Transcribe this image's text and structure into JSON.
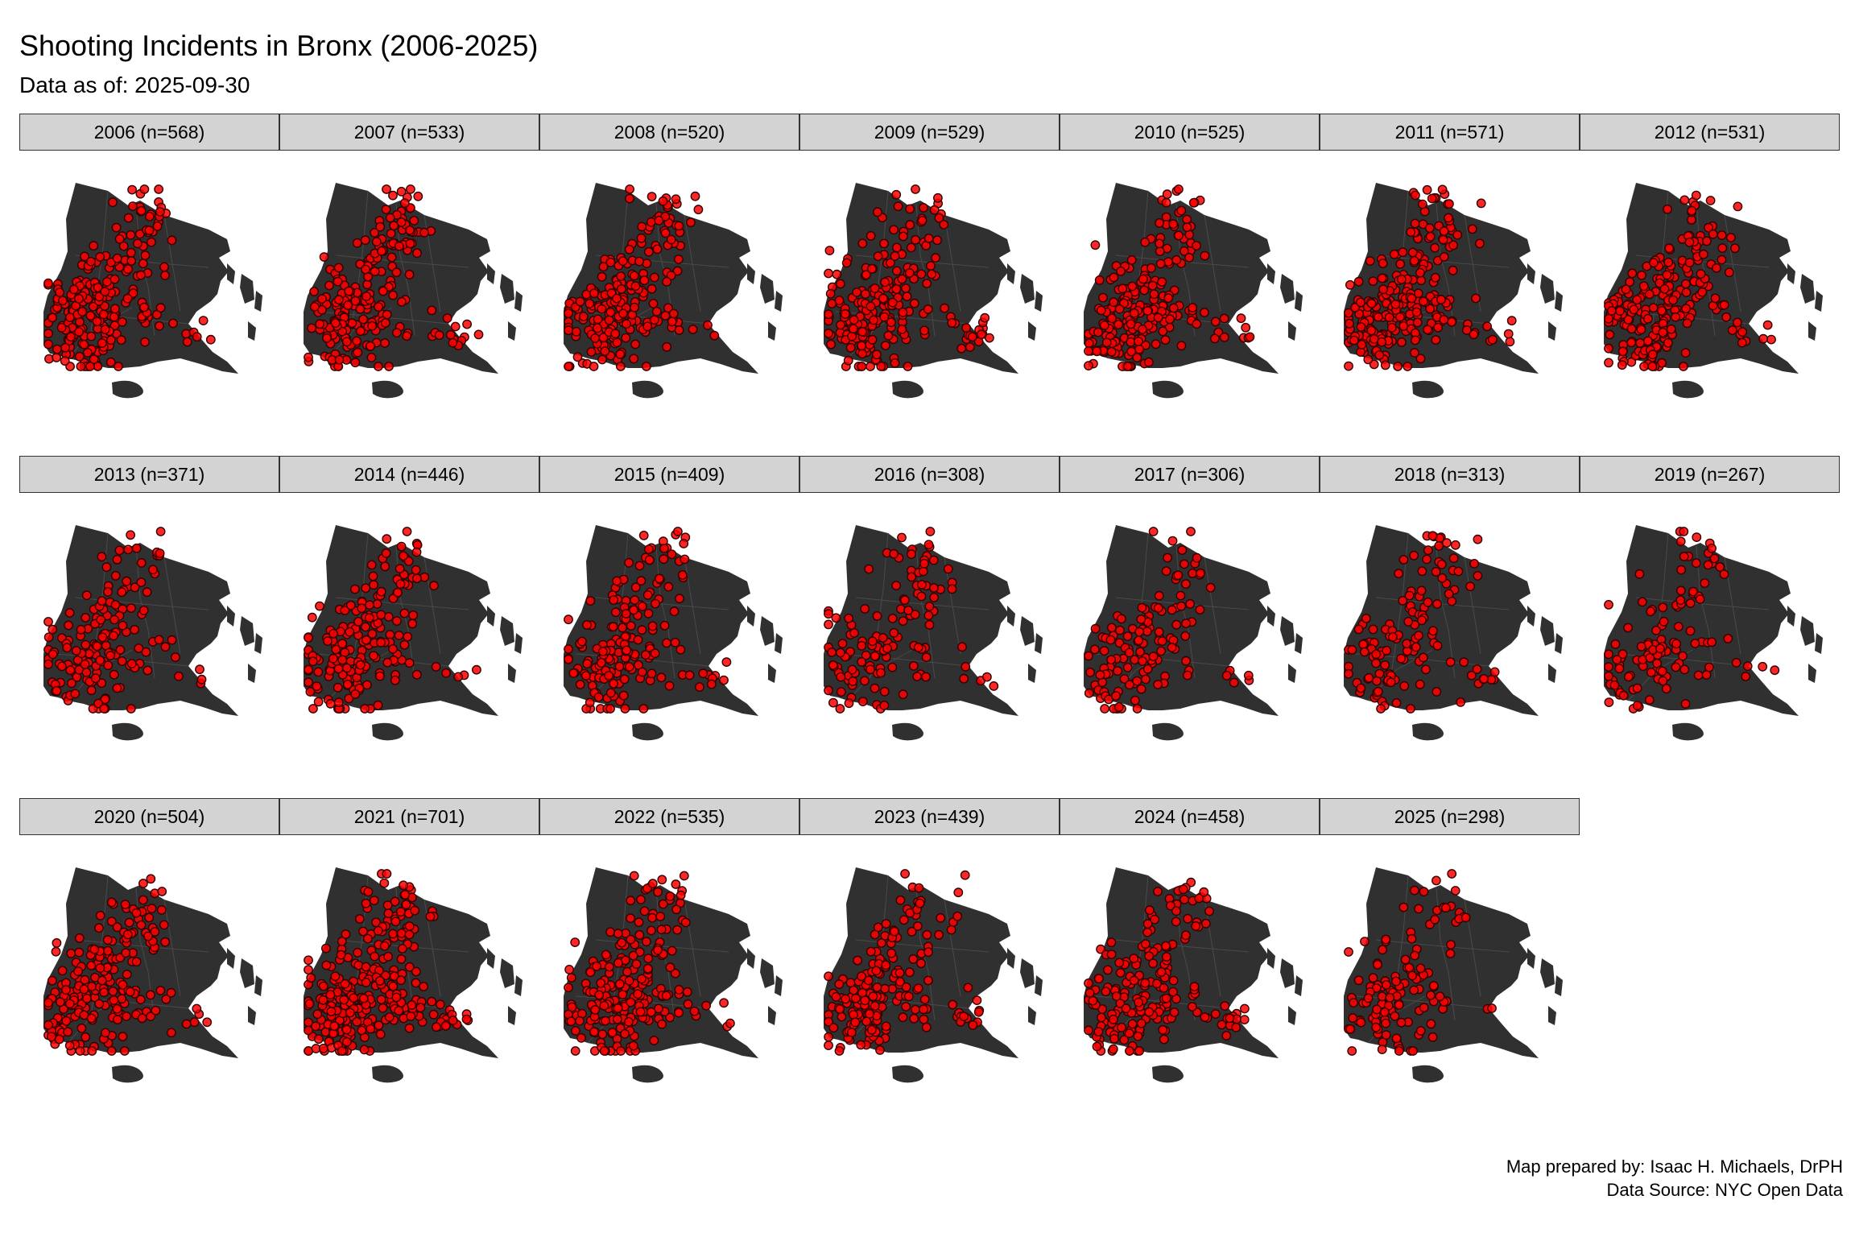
{
  "title": "Shooting Incidents in Bronx (2006-2025)",
  "subtitle": "Data as of: 2025-09-30",
  "caption": {
    "line1": "Map prepared by: Isaac H. Michaels, DrPH",
    "line2": "Data Source: NYC Open Data"
  },
  "colors": {
    "borough_fill": "#303030",
    "neighborhood_lines": "#4a4a4a",
    "incident_point": "#ff0000",
    "point_outline": "#330000",
    "strip_fill": "#d3d3d3"
  },
  "panels": [
    {
      "label": "2006 (n=568)",
      "year": 2006,
      "n": 568
    },
    {
      "label": "2007 (n=533)",
      "year": 2007,
      "n": 533
    },
    {
      "label": "2008 (n=520)",
      "year": 2008,
      "n": 520
    },
    {
      "label": "2009 (n=529)",
      "year": 2009,
      "n": 529
    },
    {
      "label": "2010 (n=525)",
      "year": 2010,
      "n": 525
    },
    {
      "label": "2011 (n=571)",
      "year": 2011,
      "n": 571
    },
    {
      "label": "2012 (n=531)",
      "year": 2012,
      "n": 531
    },
    {
      "label": "2013 (n=371)",
      "year": 2013,
      "n": 371
    },
    {
      "label": "2014 (n=446)",
      "year": 2014,
      "n": 446
    },
    {
      "label": "2015 (n=409)",
      "year": 2015,
      "n": 409
    },
    {
      "label": "2016 (n=308)",
      "year": 2016,
      "n": 308
    },
    {
      "label": "2017 (n=306)",
      "year": 2017,
      "n": 306
    },
    {
      "label": "2018 (n=313)",
      "year": 2018,
      "n": 313
    },
    {
      "label": "2019 (n=267)",
      "year": 2019,
      "n": 267
    },
    {
      "label": "2020 (n=504)",
      "year": 2020,
      "n": 504
    },
    {
      "label": "2021 (n=701)",
      "year": 2021,
      "n": 701
    },
    {
      "label": "2022 (n=535)",
      "year": 2022,
      "n": 535
    },
    {
      "label": "2023 (n=439)",
      "year": 2023,
      "n": 439
    },
    {
      "label": "2024 (n=458)",
      "year": 2024,
      "n": 458
    },
    {
      "label": "2025 (n=298)",
      "year": 2025,
      "n": 298
    }
  ]
}
